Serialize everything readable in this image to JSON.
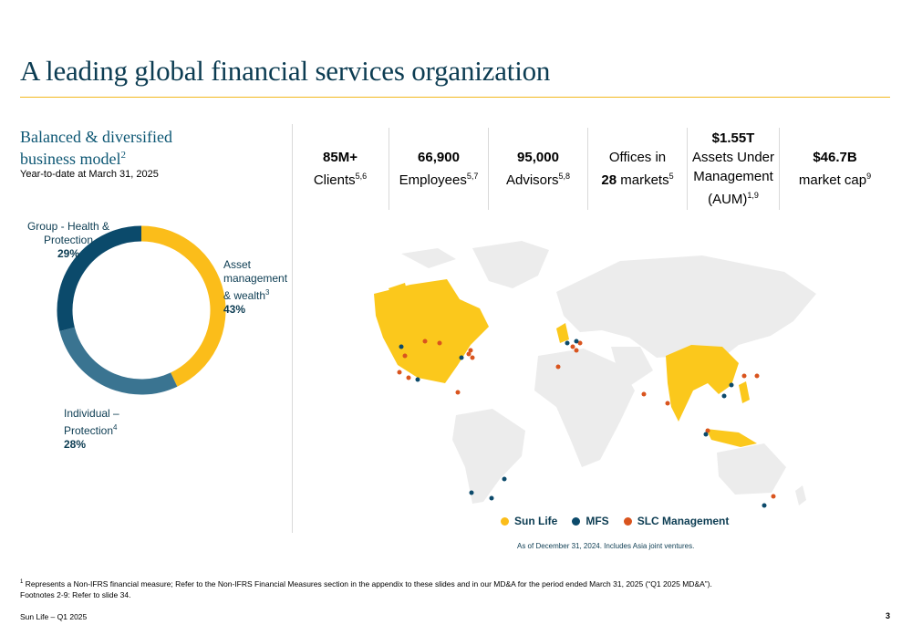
{
  "title": "A leading global financial services organization",
  "left": {
    "heading_line1": "Balanced & diversified",
    "heading_line2": "business model",
    "heading_sup": "2",
    "subtitle": "Year-to-date at March 31, 2025"
  },
  "chart_data": {
    "type": "pie",
    "donut": true,
    "title": "",
    "slices": [
      {
        "label": "Asset management & wealth",
        "sup": "3",
        "value": 43,
        "pct_text": "43%",
        "color": "#fbbd1a"
      },
      {
        "label": "Individual – Protection",
        "sup": "4",
        "value": 28,
        "pct_text": "28%",
        "color": "#3a7491"
      },
      {
        "label": "Group - Health & Protection",
        "sup": "",
        "value": 29,
        "pct_text": "29%",
        "color": "#0b4a6b"
      }
    ]
  },
  "donut_labels": {
    "asset_line1": "Asset",
    "asset_line2": "management",
    "asset_line3": "& wealth",
    "individual_line1": "Individual –",
    "individual_line2": "Protection",
    "group_line1": "Group - Health &",
    "group_line2": "Protection"
  },
  "stats": [
    {
      "big": "85M+",
      "line2": "Clients",
      "sup": "5,6"
    },
    {
      "big": "66,900",
      "line2": "Employees",
      "sup": "5,7"
    },
    {
      "big": "95,000",
      "line2": "Advisors",
      "sup": "5,8"
    },
    {
      "pre": "Offices in",
      "big": "28",
      "line2": " markets",
      "sup": "5"
    },
    {
      "big": "$1.55T",
      "line2": "Assets Under",
      "line3": "Management",
      "line4": "(AUM)",
      "sup": "1,9"
    },
    {
      "big": "$46.7B",
      "line2": "market cap",
      "sup": "9"
    }
  ],
  "legend": {
    "sunlife": "Sun Life",
    "mfs": "MFS",
    "slc": "SLC Management",
    "colors": {
      "sunlife": "#fbbd1a",
      "mfs": "#0c4a6b",
      "slc": "#d9541e",
      "land": "#ececec",
      "covered": "#fbc81c"
    }
  },
  "map_note": "As of December 31, 2024. Includes Asia joint ventures.",
  "footnote_sup": "1",
  "footnote1": " Represents a Non-IFRS financial measure; Refer to the Non-IFRS Financial Measures section in the appendix to these slides and in our MD&A for the period ended March 31, 2025 (“Q1 2025 MD&A”).",
  "footnote2": "Footnotes 2-9: Refer to slide 34.",
  "footer_left": "Sun Life – Q1 2025",
  "page_number": "3"
}
